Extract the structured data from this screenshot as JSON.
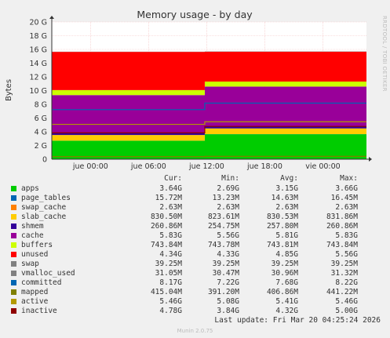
{
  "chart_data": {
    "type": "area",
    "title": "Memory usage - by day",
    "ylabel": "Bytes",
    "ylim": [
      0,
      20
    ],
    "y_unit": "G",
    "y_ticks": [
      "0",
      "2 G",
      "4 G",
      "6 G",
      "8 G",
      "10 G",
      "12 G",
      "14 G",
      "16 G",
      "18 G",
      "20 G"
    ],
    "x_ticks": [
      "jue 00:00",
      "jue 06:00",
      "jue 12:00",
      "jue 18:00",
      "vie 00:00"
    ],
    "x_hours": [
      -4,
      28.5
    ],
    "step_hour": 11.8,
    "series": [
      {
        "name": "apps",
        "color": "#00cc00",
        "before": 2.69,
        "after": 3.64
      },
      {
        "name": "page_tables",
        "color": "#0066b3",
        "before": 0.013,
        "after": 0.016
      },
      {
        "name": "swap_cache",
        "color": "#ff8000",
        "before": 0.003,
        "after": 0.003
      },
      {
        "name": "slab_cache",
        "color": "#ffcc00",
        "before": 0.82,
        "after": 0.83
      },
      {
        "name": "shmem",
        "color": "#330099",
        "before": 0.25,
        "after": 0.26
      },
      {
        "name": "cache",
        "color": "#990099",
        "before": 5.56,
        "after": 5.83
      },
      {
        "name": "buffers",
        "color": "#ccff00",
        "before": 0.74,
        "after": 0.74
      },
      {
        "name": "unused",
        "color": "#ff0000",
        "before": 5.56,
        "after": 4.34
      },
      {
        "name": "swap",
        "color": "#808080",
        "before": 0.04,
        "after": 0.04
      }
    ],
    "lines": [
      {
        "name": "committed",
        "color": "#0066b3",
        "before": 7.22,
        "after": 8.17
      },
      {
        "name": "mapped",
        "color": "#7f7f00",
        "before": 0.39,
        "after": 0.415
      },
      {
        "name": "active",
        "color": "#b39900",
        "before": 5.08,
        "after": 5.46
      },
      {
        "name": "inactive",
        "color": "#8f0000",
        "before": 3.84,
        "after": 4.78
      }
    ],
    "legend_headers": [
      "Cur:",
      "Min:",
      "Avg:",
      "Max:"
    ],
    "legend": [
      {
        "name": "apps",
        "color": "#00cc00",
        "cur": "3.64G",
        "min": "2.69G",
        "avg": "3.15G",
        "max": "3.66G"
      },
      {
        "name": "page_tables",
        "color": "#0066b3",
        "cur": "15.72M",
        "min": "13.23M",
        "avg": "14.63M",
        "max": "16.45M"
      },
      {
        "name": "swap_cache",
        "color": "#ff8000",
        "cur": "2.63M",
        "min": "2.63M",
        "avg": "2.63M",
        "max": "2.63M"
      },
      {
        "name": "slab_cache",
        "color": "#ffcc00",
        "cur": "830.50M",
        "min": "823.61M",
        "avg": "830.53M",
        "max": "831.86M"
      },
      {
        "name": "shmem",
        "color": "#330099",
        "cur": "260.86M",
        "min": "254.75M",
        "avg": "257.80M",
        "max": "260.86M"
      },
      {
        "name": "cache",
        "color": "#990099",
        "cur": "5.83G",
        "min": "5.56G",
        "avg": "5.81G",
        "max": "5.83G"
      },
      {
        "name": "buffers",
        "color": "#ccff00",
        "cur": "743.84M",
        "min": "743.78M",
        "avg": "743.81M",
        "max": "743.84M"
      },
      {
        "name": "unused",
        "color": "#ff0000",
        "cur": "4.34G",
        "min": "4.33G",
        "avg": "4.85G",
        "max": "5.56G"
      },
      {
        "name": "swap",
        "color": "#808080",
        "cur": "39.25M",
        "min": "39.25M",
        "avg": "39.25M",
        "max": "39.25M"
      },
      {
        "name": "vmalloc_used",
        "color": "#808080",
        "cur": "31.05M",
        "min": "30.47M",
        "avg": "30.96M",
        "max": "31.32M"
      },
      {
        "name": "committed",
        "color": "#0066b3",
        "cur": "8.17G",
        "min": "7.22G",
        "avg": "7.68G",
        "max": "8.22G"
      },
      {
        "name": "mapped",
        "color": "#7f7f00",
        "cur": "415.04M",
        "min": "391.20M",
        "avg": "406.86M",
        "max": "441.22M"
      },
      {
        "name": "active",
        "color": "#b39900",
        "cur": "5.46G",
        "min": "5.08G",
        "avg": "5.41G",
        "max": "5.46G"
      },
      {
        "name": "inactive",
        "color": "#8f0000",
        "cur": "4.78G",
        "min": "3.84G",
        "avg": "4.32G",
        "max": "5.00G"
      }
    ],
    "last_update": "Last update: Fri Mar 20 04:25:24 2026",
    "footer": "Munin 2.0.75",
    "side_label": "RRDTOOL / TOBI OETIKER"
  }
}
